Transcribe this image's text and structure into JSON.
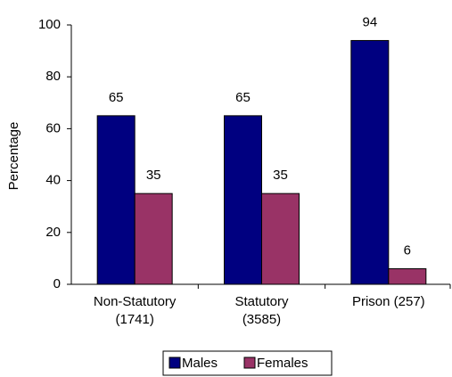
{
  "chart_data": {
    "type": "bar",
    "y_label": "Percentage",
    "categories": [
      "Non-Statutory\n(1741)",
      "Statutory\n(3585)",
      "Prison (257)"
    ],
    "series": [
      {
        "name": "Males",
        "color": "#000080",
        "values": [
          65,
          65,
          94
        ]
      },
      {
        "name": "Females",
        "color": "#993366",
        "values": [
          35,
          35,
          6
        ]
      }
    ],
    "ylim": [
      0,
      100
    ],
    "yticks": [
      0,
      20,
      40,
      60,
      80,
      100
    ],
    "grid": false,
    "legend": "bottom"
  }
}
